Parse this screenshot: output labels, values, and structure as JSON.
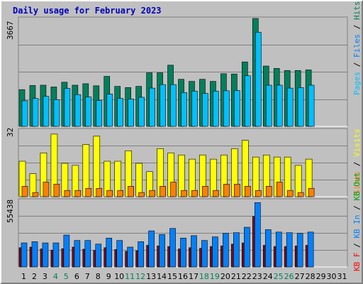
{
  "title": "Daily usage for February 2023",
  "colors": {
    "hits": "#00805c",
    "files": "#00c0ff",
    "sites": "#ff8000",
    "visits": "#ffff00",
    "kbin": "#0080ff",
    "kbout": "#800000",
    "weekend": "#00805c",
    "title": "#0000bb"
  },
  "chart_data": [
    {
      "type": "bar",
      "panel": "top",
      "ymax": 3667,
      "ymax_label": "3667",
      "legend": [
        "Pages",
        "Files",
        "Hits"
      ],
      "categories": [
        "1",
        "2",
        "3",
        "4",
        "5",
        "6",
        "7",
        "8",
        "9",
        "10",
        "11",
        "12",
        "13",
        "14",
        "15",
        "16",
        "17",
        "18",
        "19",
        "20",
        "21",
        "22",
        "23",
        "24",
        "25",
        "26",
        "27",
        "28",
        "29",
        "30",
        "31"
      ],
      "series": [
        {
          "name": "Hits",
          "values": [
            1250,
            1390,
            1400,
            1340,
            1500,
            1400,
            1450,
            1380,
            1700,
            1360,
            1320,
            1360,
            1820,
            1820,
            2080,
            1600,
            1530,
            1600,
            1530,
            1790,
            1780,
            2190,
            3667,
            2050,
            1970,
            1900,
            1900,
            1920,
            0,
            0,
            0
          ]
        },
        {
          "name": "Files",
          "values": [
            870,
            950,
            1020,
            910,
            1290,
            1080,
            1000,
            880,
            1100,
            950,
            930,
            990,
            1300,
            1420,
            1420,
            1150,
            1200,
            1120,
            1200,
            1210,
            1220,
            1720,
            3200,
            1400,
            1400,
            1300,
            1320,
            1400,
            0,
            0,
            0
          ]
        }
      ]
    },
    {
      "type": "bar",
      "panel": "middle",
      "ymax": 32,
      "ymax_label": "32",
      "legend": [
        "Visits",
        "Sites"
      ],
      "categories": [
        "1",
        "2",
        "3",
        "4",
        "5",
        "6",
        "7",
        "8",
        "9",
        "10",
        "11",
        "12",
        "13",
        "14",
        "15",
        "16",
        "17",
        "18",
        "19",
        "20",
        "21",
        "22",
        "23",
        "24",
        "25",
        "26",
        "27",
        "28",
        "29",
        "30",
        "31"
      ],
      "series": [
        {
          "name": "Visits",
          "values": [
            17,
            11,
            21,
            30,
            16,
            15,
            25,
            29,
            17,
            17,
            22,
            16,
            12,
            23,
            21,
            20,
            18,
            20,
            18,
            20,
            23,
            27,
            19,
            20,
            19,
            19,
            15,
            18,
            0,
            0,
            0
          ]
        },
        {
          "name": "Sites",
          "values": [
            5,
            2,
            7,
            6,
            3,
            3,
            4,
            4,
            3,
            3,
            5,
            2,
            3,
            5,
            7,
            3,
            3,
            5,
            3,
            6,
            6,
            5,
            3,
            5,
            7,
            3,
            2,
            4,
            0,
            0,
            0
          ]
        }
      ]
    },
    {
      "type": "bar",
      "panel": "bottom",
      "ymax": 55438,
      "ymax_label": "55438",
      "legend": [
        "KB F",
        "KB In",
        "KB Out"
      ],
      "categories": [
        "1",
        "2",
        "3",
        "4",
        "5",
        "6",
        "7",
        "8",
        "9",
        "10",
        "11",
        "12",
        "13",
        "14",
        "15",
        "16",
        "17",
        "18",
        "19",
        "20",
        "21",
        "22",
        "23",
        "24",
        "25",
        "26",
        "27",
        "28",
        "29",
        "30",
        "31"
      ],
      "series": [
        {
          "name": "KB Out",
          "values": [
            16000,
            16500,
            15000,
            14000,
            15200,
            16500,
            14800,
            13800,
            16000,
            14500,
            13000,
            13500,
            18000,
            17500,
            17000,
            15000,
            16000,
            15500,
            17000,
            17500,
            19000,
            20000,
            42000,
            18000,
            17000,
            17000,
            17500,
            18000,
            0,
            0,
            0
          ]
        },
        {
          "name": "KB In",
          "values": [
            20000,
            21000,
            20000,
            20000,
            26500,
            22000,
            22000,
            19000,
            24000,
            22000,
            16500,
            21000,
            30000,
            27000,
            32000,
            24000,
            26000,
            22000,
            25000,
            28000,
            28500,
            33000,
            53500,
            31000,
            29000,
            28500,
            28000,
            29000,
            0,
            0,
            0
          ]
        }
      ]
    }
  ]
}
